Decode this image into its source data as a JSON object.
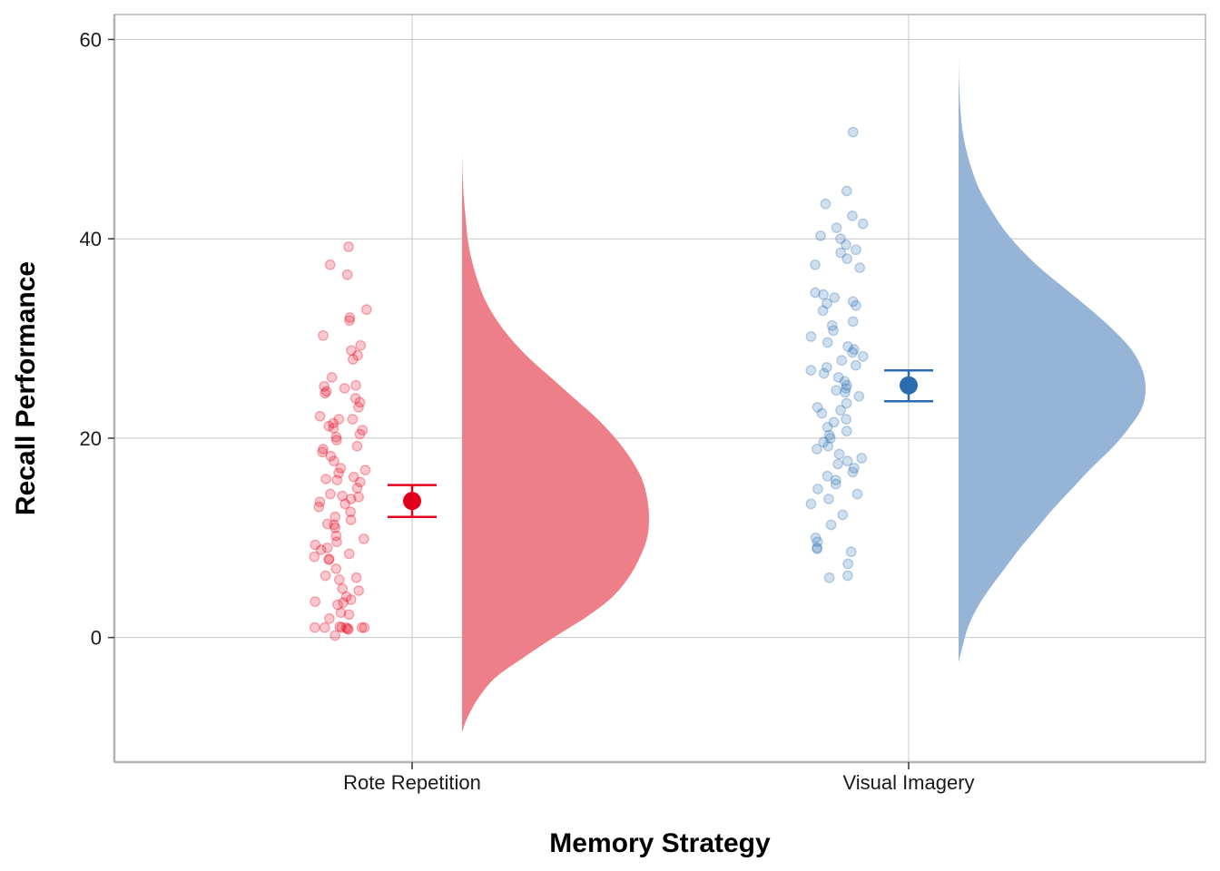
{
  "chart_data": {
    "type": "raincloud",
    "title": "",
    "xlabel": "Memory Strategy",
    "ylabel": "Recall Performance",
    "ylim": [
      -12.5,
      62.5
    ],
    "yticks": [
      0,
      20,
      40,
      60
    ],
    "ytick_labels": [
      "0",
      "20",
      "40",
      "60"
    ],
    "grid": true,
    "legend": "none",
    "categories": [
      "Rote Repetition",
      "Visual Imagery"
    ],
    "series": [
      {
        "category": "Rote Repetition",
        "color": "#e3001b",
        "cloud_color": "#ee7f89",
        "mean": 13.7,
        "ci": [
          12.1,
          15.3
        ],
        "density": {
          "y": [
            -9.5,
            -8,
            -6,
            -4,
            -2,
            0,
            2,
            4,
            6,
            8,
            10,
            12,
            14,
            16,
            18,
            20,
            22,
            24,
            26,
            28,
            30,
            32,
            34,
            36,
            38,
            40,
            42,
            44,
            46,
            48.5
          ],
          "d": [
            0.0,
            0.03,
            0.09,
            0.18,
            0.33,
            0.49,
            0.66,
            0.8,
            0.89,
            0.95,
            0.99,
            1.0,
            0.99,
            0.96,
            0.9,
            0.82,
            0.72,
            0.6,
            0.48,
            0.36,
            0.26,
            0.18,
            0.12,
            0.08,
            0.05,
            0.03,
            0.02,
            0.01,
            0.004,
            0.0
          ]
        },
        "points": [
          39.2,
          37.4,
          36.4,
          32.9,
          32.1,
          31.8,
          30.3,
          29.3,
          28.8,
          28.3,
          27.9,
          26.1,
          25.3,
          25.2,
          25.0,
          24.7,
          24.5,
          24.0,
          23.6,
          23.1,
          22.2,
          21.9,
          21.9,
          21.5,
          21.2,
          21.0,
          20.8,
          20.4,
          20.1,
          19.8,
          19.2,
          18.9,
          18.6,
          18.2,
          17.7,
          17.0,
          16.8,
          16.5,
          16.1,
          15.9,
          15.8,
          15.6,
          15.0,
          14.4,
          14.2,
          14.1,
          13.9,
          13.6,
          13.4,
          13.1,
          12.6,
          12.1,
          11.8,
          11.4,
          11.3,
          11.0,
          10.2,
          9.9,
          9.6,
          9.3,
          9.0,
          8.8,
          8.4,
          8.1,
          7.9,
          7.8,
          6.9,
          6.2,
          6.0,
          5.8,
          4.9,
          4.7,
          4.1,
          3.8,
          3.6,
          3.5,
          3.3,
          2.5,
          2.3,
          1.9,
          1.1,
          1.0,
          1.0,
          1.0,
          1.0,
          1.0,
          1.0,
          0.9,
          0.8,
          0.2
        ]
      },
      {
        "category": "Visual Imagery",
        "color": "#2b6cb0",
        "cloud_color": "#96b4d5",
        "mean": 25.3,
        "ci": [
          23.7,
          26.8
        ],
        "density": {
          "y": [
            -2.5,
            -1,
            1,
            3,
            5,
            7,
            9,
            11,
            13,
            15,
            17,
            19,
            21,
            23,
            25,
            27,
            29,
            31,
            33,
            35,
            37,
            39,
            41,
            43,
            45,
            47,
            49,
            51,
            53,
            55,
            57,
            59.3
          ],
          "d": [
            0.0,
            0.02,
            0.05,
            0.1,
            0.17,
            0.25,
            0.33,
            0.42,
            0.51,
            0.61,
            0.71,
            0.82,
            0.91,
            0.98,
            1.0,
            0.98,
            0.92,
            0.82,
            0.7,
            0.57,
            0.44,
            0.33,
            0.24,
            0.17,
            0.11,
            0.07,
            0.04,
            0.02,
            0.01,
            0.004,
            0.001,
            0.0
          ]
        },
        "points": [
          50.7,
          44.8,
          43.5,
          42.3,
          41.5,
          41.1,
          40.3,
          40.0,
          39.4,
          38.9,
          38.6,
          38.0,
          37.4,
          37.1,
          34.6,
          34.4,
          34.1,
          33.7,
          33.5,
          33.3,
          32.8,
          31.7,
          31.3,
          30.8,
          30.2,
          29.6,
          29.2,
          28.9,
          28.6,
          28.2,
          27.8,
          27.3,
          27.1,
          26.8,
          26.5,
          26.1,
          25.7,
          25.3,
          25.0,
          24.8,
          24.6,
          24.2,
          23.5,
          23.1,
          22.8,
          22.5,
          21.9,
          21.6,
          21.1,
          20.7,
          20.3,
          20.0,
          19.6,
          19.2,
          18.9,
          18.4,
          18.0,
          17.7,
          17.4,
          17.0,
          16.6,
          16.2,
          15.8,
          15.4,
          14.9,
          14.4,
          13.9,
          13.4,
          12.3,
          11.3,
          10.0,
          9.6,
          9.0,
          8.9,
          8.6,
          7.4,
          6.2,
          6.0
        ]
      }
    ]
  }
}
